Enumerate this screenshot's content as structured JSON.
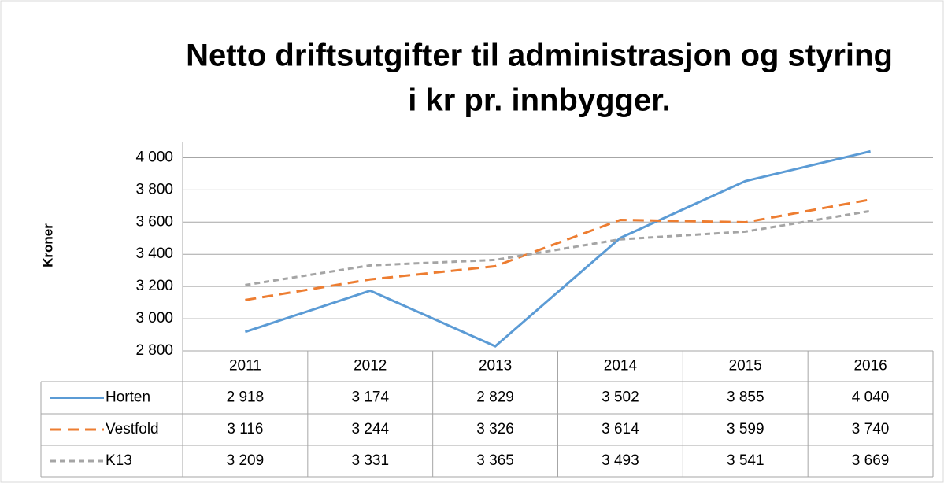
{
  "chart_data": {
    "type": "line",
    "title": [
      "Netto driftsutgifter til administrasjon og styring",
      "i kr pr. innbygger."
    ],
    "y_label": "Kroner",
    "categories": [
      "2011",
      "2012",
      "2013",
      "2014",
      "2015",
      "2016"
    ],
    "series": [
      {
        "name": "Horten",
        "color": "#5b9bd5",
        "line_style": "solid",
        "values": [
          2918,
          3174,
          2829,
          3502,
          3855,
          4040
        ],
        "value_labels": [
          "2 918",
          "3 174",
          "2 829",
          "3 502",
          "3 855",
          "4 040"
        ]
      },
      {
        "name": "Vestfold",
        "color": "#ed7d31",
        "line_style": "dashed",
        "values": [
          3116,
          3244,
          3326,
          3614,
          3599,
          3740
        ],
        "value_labels": [
          "3 116",
          "3 244",
          "3 326",
          "3 614",
          "3 599",
          "3 740"
        ]
      },
      {
        "name": "K13",
        "color": "#a5a5a5",
        "line_style": "short-dashed",
        "values": [
          3209,
          3331,
          3365,
          3493,
          3541,
          3669
        ],
        "value_labels": [
          "3 209",
          "3 331",
          "3 365",
          "3 493",
          "3 541",
          "3 669"
        ]
      }
    ],
    "ylim": [
      2800,
      4100
    ],
    "yticks": [
      {
        "value": 2800,
        "label": "2 800"
      },
      {
        "value": 3000,
        "label": "3 000"
      },
      {
        "value": 3200,
        "label": "3 200"
      },
      {
        "value": 3400,
        "label": "3 400"
      },
      {
        "value": 3600,
        "label": "3 600"
      },
      {
        "value": 3800,
        "label": "3 800"
      },
      {
        "value": 4000,
        "label": "4 000"
      }
    ],
    "grid": true
  }
}
